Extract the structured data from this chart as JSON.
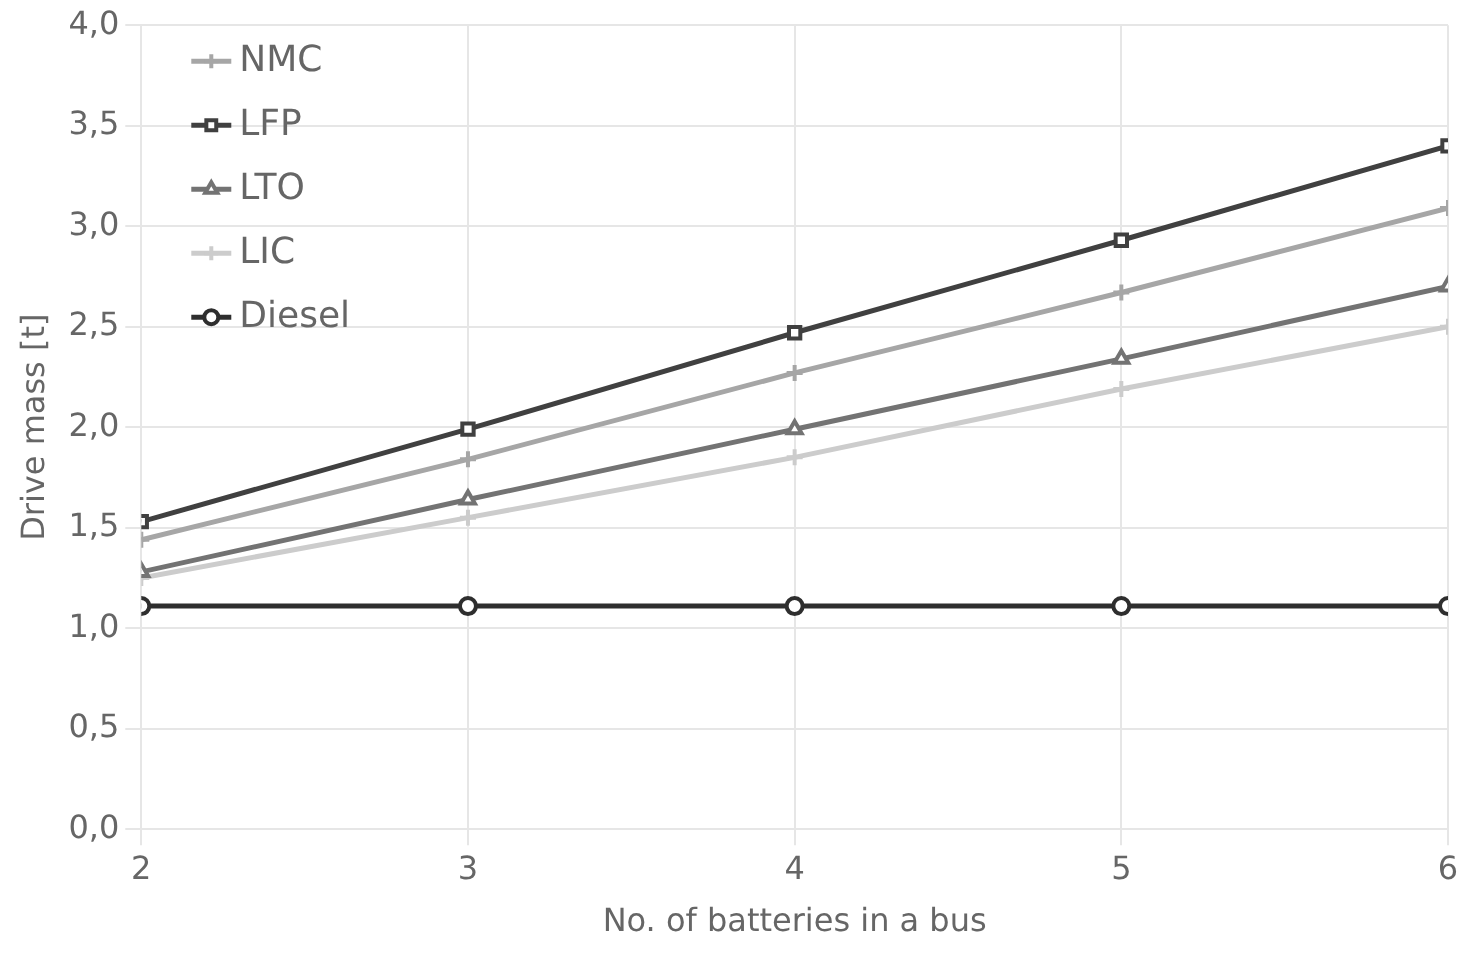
{
  "chart_data": {
    "type": "line",
    "xlabel": "No. of batteries in a bus",
    "ylabel": "Drive mass [t]",
    "x": [
      2,
      3,
      4,
      5,
      6
    ],
    "xlim": [
      2,
      6
    ],
    "xticks": [
      2,
      3,
      4,
      5,
      6
    ],
    "ylim": [
      0,
      4
    ],
    "yticks": [
      {
        "value": 0,
        "label": "0,0"
      },
      {
        "value": 0.5,
        "label": "0,5"
      },
      {
        "value": 1,
        "label": "1,0"
      },
      {
        "value": 1.5,
        "label": "1,5"
      },
      {
        "value": 2,
        "label": "2,0"
      },
      {
        "value": 2.5,
        "label": "2,5"
      },
      {
        "value": 3,
        "label": "3,0"
      },
      {
        "value": 3.5,
        "label": "3,5"
      },
      {
        "value": 4,
        "label": "4,0"
      }
    ],
    "grid": true,
    "legend": "top left",
    "series": [
      {
        "name": "NMC",
        "color": "#a6a6a6",
        "marker": "cross",
        "values": [
          1.44,
          1.84,
          2.27,
          2.67,
          3.09
        ]
      },
      {
        "name": "LFP",
        "color": "#404040",
        "marker": "square",
        "values": [
          1.53,
          1.99,
          2.47,
          2.93,
          3.4
        ]
      },
      {
        "name": "LTO",
        "color": "#737373",
        "marker": "triangle",
        "values": [
          1.28,
          1.64,
          1.99,
          2.34,
          2.7
        ]
      },
      {
        "name": "LIC",
        "color": "#cccccc",
        "marker": "cross",
        "values": [
          1.25,
          1.55,
          1.85,
          2.19,
          2.5
        ]
      },
      {
        "name": "Diesel",
        "color": "#2e2e2e",
        "marker": "circle",
        "values": [
          1.11,
          1.11,
          1.11,
          1.11,
          1.11
        ]
      }
    ]
  }
}
